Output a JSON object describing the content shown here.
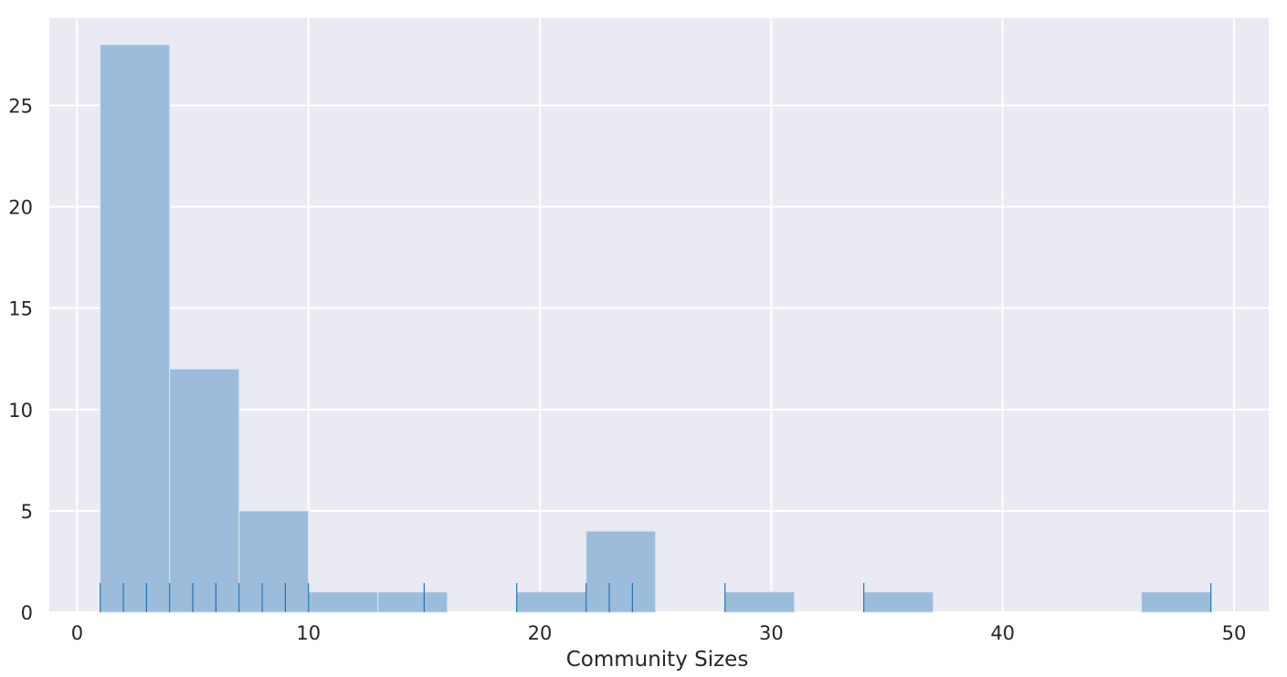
{
  "chart_data": {
    "type": "bar",
    "subtype": "histogram-with-rug",
    "title": "",
    "xlabel": "Community Sizes",
    "ylabel": "",
    "xlim": [
      -1.2,
      51.5
    ],
    "ylim": [
      0,
      29.3
    ],
    "xticks": [
      0,
      10,
      20,
      30,
      40,
      50
    ],
    "yticks": [
      0,
      5,
      10,
      15,
      20,
      25
    ],
    "xtick_labels": [
      "0",
      "10",
      "20",
      "30",
      "40",
      "50"
    ],
    "ytick_labels": [
      "0",
      "5",
      "10",
      "15",
      "20",
      "25"
    ],
    "grid": true,
    "legend": "none",
    "bins": [
      {
        "x0": 1,
        "x1": 4,
        "count": 28
      },
      {
        "x0": 4,
        "x1": 7,
        "count": 12
      },
      {
        "x0": 7,
        "x1": 10,
        "count": 5
      },
      {
        "x0": 10,
        "x1": 13,
        "count": 1
      },
      {
        "x0": 13,
        "x1": 16,
        "count": 1
      },
      {
        "x0": 16,
        "x1": 19,
        "count": 0
      },
      {
        "x0": 19,
        "x1": 22,
        "count": 1
      },
      {
        "x0": 22,
        "x1": 25,
        "count": 4
      },
      {
        "x0": 25,
        "x1": 28,
        "count": 0
      },
      {
        "x0": 28,
        "x1": 31,
        "count": 1
      },
      {
        "x0": 31,
        "x1": 34,
        "count": 0
      },
      {
        "x0": 34,
        "x1": 37,
        "count": 1
      },
      {
        "x0": 37,
        "x1": 40,
        "count": 0
      },
      {
        "x0": 40,
        "x1": 43,
        "count": 0
      },
      {
        "x0": 43,
        "x1": 46,
        "count": 0
      },
      {
        "x0": 46,
        "x1": 49,
        "count": 1
      }
    ],
    "rug_values": [
      1,
      2,
      3,
      4,
      5,
      6,
      7,
      8,
      9,
      10,
      15,
      19,
      22,
      23,
      24,
      28,
      34,
      49
    ],
    "colors": {
      "background": "#eaeaf2",
      "grid": "#ffffff",
      "bar_fill": "#9bbcdb",
      "bar_edge": "#d8e4f0",
      "rug": "#1f77b4",
      "text": "#262626"
    }
  }
}
